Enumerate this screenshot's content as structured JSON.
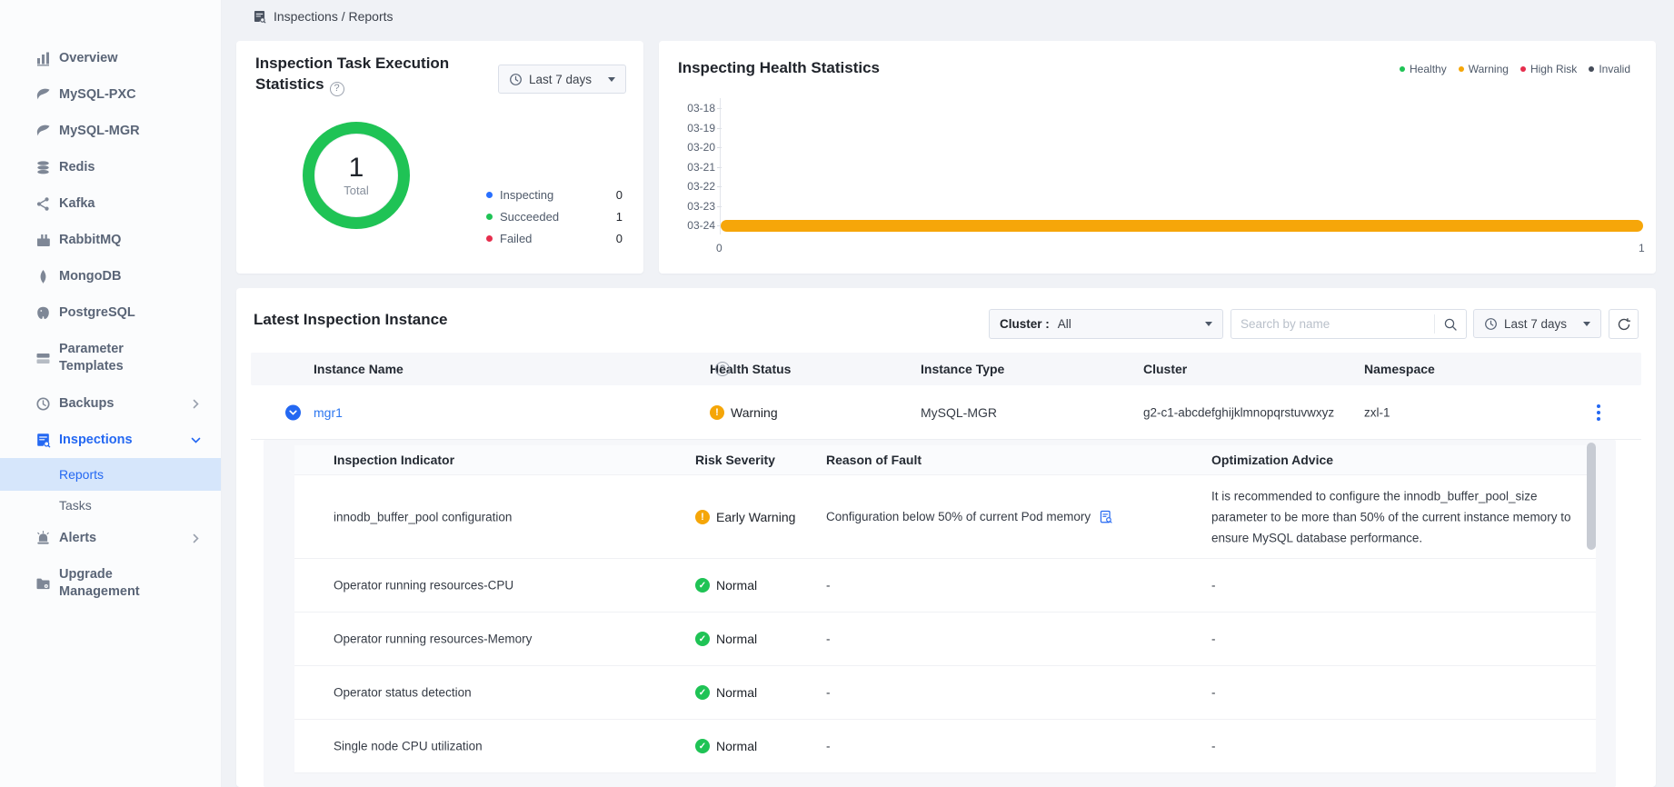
{
  "colors": {
    "accent_blue": "#2468F2",
    "success_green": "#1FC355",
    "warning_orange": "#F5A608",
    "danger_red": "#E62E4D",
    "invalid_dark": "#454C59"
  },
  "breadcrumb": {
    "label": "Inspections / Reports"
  },
  "sidebar": {
    "items": [
      {
        "label": "Overview"
      },
      {
        "label": "MySQL-PXC"
      },
      {
        "label": "MySQL-MGR"
      },
      {
        "label": "Redis"
      },
      {
        "label": "Kafka"
      },
      {
        "label": "RabbitMQ"
      },
      {
        "label": "MongoDB"
      },
      {
        "label": "PostgreSQL"
      },
      {
        "label": "Parameter Templates"
      },
      {
        "label": "Backups"
      },
      {
        "label": "Inspections",
        "active": true
      },
      {
        "label": "Reports",
        "sub": true,
        "selected": true
      },
      {
        "label": "Tasks",
        "sub": true
      },
      {
        "label": "Alerts"
      },
      {
        "label": "Upgrade Management"
      }
    ]
  },
  "task_card": {
    "title": "Inspection Task Execution Statistics",
    "range": "Last 7 days",
    "donut_value": "1",
    "donut_label": "Total",
    "legend": [
      {
        "label": "Inspecting",
        "value": "0",
        "color": "#2970FF"
      },
      {
        "label": "Succeeded",
        "value": "1",
        "color": "#1FC355"
      },
      {
        "label": "Failed",
        "value": "0",
        "color": "#E62E4D"
      }
    ],
    "chart_data": {
      "type": "pie",
      "title": "Inspection Task Execution Statistics",
      "categories": [
        "Inspecting",
        "Succeeded",
        "Failed"
      ],
      "values": [
        0,
        1,
        0
      ],
      "total": 1,
      "total_label": "Total"
    }
  },
  "health_card": {
    "title": "Inspecting Health Statistics",
    "legend": [
      {
        "label": "Healthy",
        "color": "#1FC355"
      },
      {
        "label": "Warning",
        "color": "#F5A608"
      },
      {
        "label": "High Risk",
        "color": "#E62E4D"
      },
      {
        "label": "Invalid",
        "color": "#454C59"
      }
    ],
    "chart_data": {
      "type": "bar",
      "orientation": "horizontal",
      "title": "Inspecting Health Statistics",
      "categories": [
        "03-18",
        "03-19",
        "03-20",
        "03-21",
        "03-22",
        "03-23",
        "03-24"
      ],
      "series": [
        {
          "name": "Healthy",
          "color": "#1FC355",
          "values": [
            0,
            0,
            0,
            0,
            0,
            0,
            0
          ]
        },
        {
          "name": "Warning",
          "color": "#F6A609",
          "values": [
            0,
            0,
            0,
            0,
            0,
            0,
            1
          ]
        },
        {
          "name": "High Risk",
          "color": "#E62E4D",
          "values": [
            0,
            0,
            0,
            0,
            0,
            0,
            0
          ]
        },
        {
          "name": "Invalid",
          "color": "#454C59",
          "values": [
            0,
            0,
            0,
            0,
            0,
            0,
            0
          ]
        }
      ],
      "xlim": [
        0,
        1
      ],
      "xticks": [
        "0",
        "1"
      ],
      "legend_position": "top-right",
      "grid": false
    }
  },
  "instances": {
    "title": "Latest Inspection Instance",
    "filters": {
      "cluster_label": "Cluster :",
      "cluster_value": "All",
      "search_placeholder": "Search by name",
      "range": "Last 7 days"
    },
    "columns": [
      "Instance Name",
      "Health Status",
      "Instance Type",
      "Cluster",
      "Namespace"
    ],
    "row": {
      "name": "mgr1",
      "health": "Warning",
      "type": "MySQL-MGR",
      "cluster": "g2-c1-abcdefghijklmnopqrstuvwxyz",
      "namespace": "zxl-1"
    },
    "detail": {
      "columns": [
        "Inspection Indicator",
        "Risk Severity",
        "Reason of Fault",
        "Optimization Advice"
      ],
      "rows": [
        {
          "indicator": "innodb_buffer_pool configuration",
          "severity": "Early Warning",
          "status": "warning",
          "reason": "Configuration below 50% of current Pod memory",
          "advice": "It is recommended to configure the innodb_buffer_pool_size parameter to be more than 50% of the current instance memory to ensure MySQL database performance."
        },
        {
          "indicator": "Operator running resources-CPU",
          "severity": "Normal",
          "status": "ok",
          "reason": "-",
          "advice": "-"
        },
        {
          "indicator": "Operator running resources-Memory",
          "severity": "Normal",
          "status": "ok",
          "reason": "-",
          "advice": "-"
        },
        {
          "indicator": "Operator status detection",
          "severity": "Normal",
          "status": "ok",
          "reason": "-",
          "advice": "-"
        },
        {
          "indicator": "Single node CPU utilization",
          "severity": "Normal",
          "status": "ok",
          "reason": "-",
          "advice": "-"
        }
      ]
    }
  }
}
